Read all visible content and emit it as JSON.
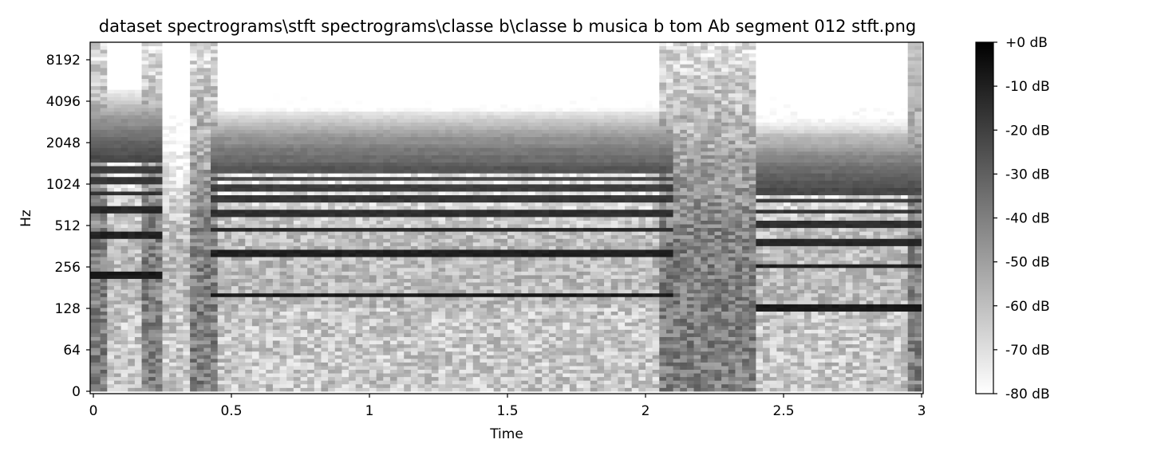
{
  "chart_data": {
    "type": "heatmap",
    "title": "dataset spectrograms\\stft spectrograms\\classe b\\classe b musica b tom Ab segment 012 stft.png",
    "xlabel": "Time",
    "ylabel": "Hz",
    "xlim": [
      0,
      3
    ],
    "y_scale": "symlog (base 2)",
    "x_ticks": [
      0,
      0.5,
      1,
      1.5,
      2,
      2.5,
      3
    ],
    "x_tick_labels": [
      "0",
      "0.5",
      "1",
      "1.5",
      "2",
      "2.5",
      "3"
    ],
    "y_ticks": [
      0,
      64,
      128,
      256,
      512,
      1024,
      2048,
      4096,
      8192
    ],
    "y_tick_labels": [
      "0",
      "64",
      "128",
      "256",
      "512",
      "1024",
      "2048",
      "4096",
      "8192"
    ],
    "colormap": "gray_r",
    "colorbar": {
      "range_db": [
        -80,
        0
      ],
      "ticks": [
        0,
        -10,
        -20,
        -30,
        -40,
        -50,
        -60,
        -70,
        -80
      ],
      "tick_labels": [
        "+0 dB",
        "-10 dB",
        "-20 dB",
        "-30 dB",
        "-40 dB",
        "-50 dB",
        "-60 dB",
        "-70 dB",
        "-80 dB"
      ]
    },
    "notes": [
      {
        "t_start": 0.0,
        "t_end": 0.25,
        "f0_hz": 220
      },
      {
        "t_start": 0.42,
        "t_end": 2.1,
        "f0_hz": 160
      },
      {
        "t_start": 2.4,
        "t_end": 3.0,
        "f0_hz": 130
      }
    ],
    "onsets_s": [
      0.0,
      0.22,
      0.4,
      2.1,
      2.35,
      2.98
    ]
  }
}
